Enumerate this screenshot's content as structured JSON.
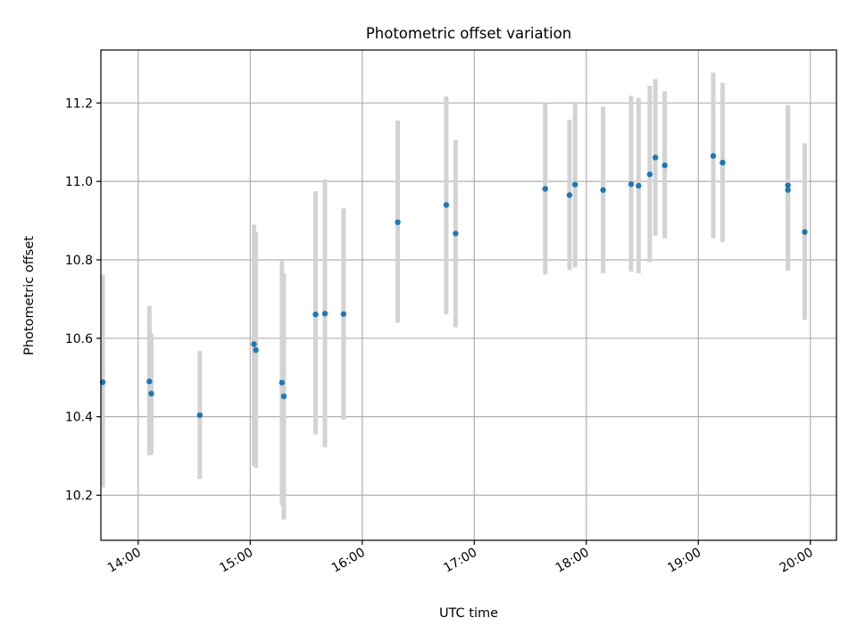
{
  "chart_data": {
    "type": "scatter",
    "title": "Photometric offset variation",
    "xlabel": "UTC time",
    "ylabel": "Photometric offset",
    "x_unit": "UTC time (HH:MM)",
    "xlim": [
      "13:40",
      "20:14"
    ],
    "ylim": [
      10.085,
      11.335
    ],
    "xticks": [
      "14:00",
      "15:00",
      "16:00",
      "17:00",
      "18:00",
      "19:00",
      "20:00"
    ],
    "yticks": [
      "10.2",
      "10.4",
      "10.6",
      "10.8",
      "11.0",
      "11.2"
    ],
    "grid": true,
    "marker_color": "#1f77b4",
    "errorbar_color": "#d3d3d3",
    "points": [
      {
        "t": "13:41",
        "y": 10.488,
        "lo": 10.22,
        "hi": 10.762
      },
      {
        "t": "14:06",
        "y": 10.49,
        "lo": 10.302,
        "hi": 10.683
      },
      {
        "t": "14:07",
        "y": 10.459,
        "lo": 10.303,
        "hi": 10.612
      },
      {
        "t": "14:33",
        "y": 10.404,
        "lo": 10.241,
        "hi": 10.568
      },
      {
        "t": "15:02",
        "y": 10.585,
        "lo": 10.275,
        "hi": 10.89
      },
      {
        "t": "15:03",
        "y": 10.57,
        "lo": 10.27,
        "hi": 10.87
      },
      {
        "t": "15:17",
        "y": 10.487,
        "lo": 10.175,
        "hi": 10.797
      },
      {
        "t": "15:18",
        "y": 10.452,
        "lo": 10.138,
        "hi": 10.765
      },
      {
        "t": "15:35",
        "y": 10.661,
        "lo": 10.355,
        "hi": 10.975
      },
      {
        "t": "15:40",
        "y": 10.663,
        "lo": 10.322,
        "hi": 11.005
      },
      {
        "t": "15:50",
        "y": 10.662,
        "lo": 10.393,
        "hi": 10.931
      },
      {
        "t": "16:19",
        "y": 10.896,
        "lo": 10.64,
        "hi": 11.155
      },
      {
        "t": "16:45",
        "y": 10.94,
        "lo": 10.661,
        "hi": 11.217
      },
      {
        "t": "16:50",
        "y": 10.867,
        "lo": 10.628,
        "hi": 11.106
      },
      {
        "t": "17:38",
        "y": 10.981,
        "lo": 10.763,
        "hi": 11.2
      },
      {
        "t": "17:51",
        "y": 10.965,
        "lo": 10.774,
        "hi": 11.157
      },
      {
        "t": "17:54",
        "y": 10.992,
        "lo": 10.781,
        "hi": 11.203
      },
      {
        "t": "18:09",
        "y": 10.978,
        "lo": 10.766,
        "hi": 11.19
      },
      {
        "t": "18:24",
        "y": 10.993,
        "lo": 10.77,
        "hi": 11.218
      },
      {
        "t": "18:28",
        "y": 10.989,
        "lo": 10.766,
        "hi": 11.213
      },
      {
        "t": "18:34",
        "y": 11.018,
        "lo": 10.794,
        "hi": 11.244
      },
      {
        "t": "18:37",
        "y": 11.061,
        "lo": 10.862,
        "hi": 11.261
      },
      {
        "t": "18:42",
        "y": 11.041,
        "lo": 10.855,
        "hi": 11.23
      },
      {
        "t": "19:08",
        "y": 11.065,
        "lo": 10.855,
        "hi": 11.277
      },
      {
        "t": "19:13",
        "y": 11.048,
        "lo": 10.845,
        "hi": 11.251
      },
      {
        "t": "19:48",
        "y": 10.99,
        "lo": 10.79,
        "hi": 11.195
      },
      {
        "t": "19:48",
        "y": 10.978,
        "lo": 10.772,
        "hi": 11.185
      },
      {
        "t": "19:57",
        "y": 10.871,
        "lo": 10.647,
        "hi": 11.097
      }
    ]
  }
}
